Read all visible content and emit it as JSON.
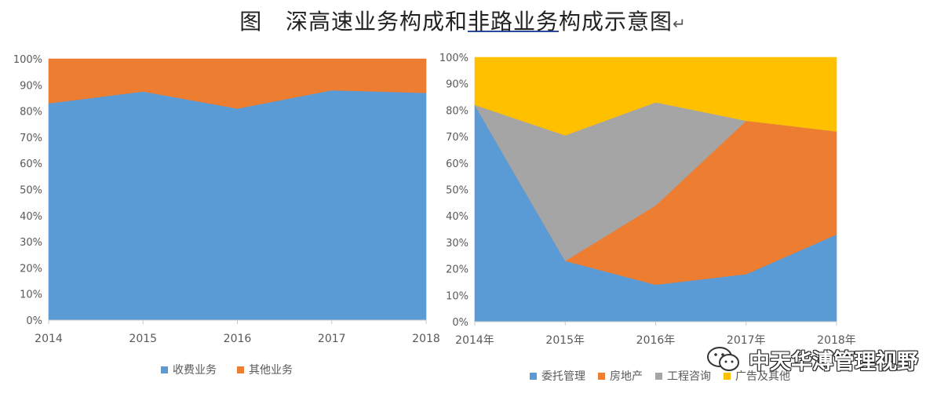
{
  "title": {
    "prefix": "图",
    "part1": "深高速业务构成和",
    "part2": "非路业务",
    "part3": "构成示意图",
    "mark": "↵"
  },
  "watermark": {
    "text": "中天华溥管理视野",
    "icon": "wechat-logo-icon"
  },
  "chart_data": [
    {
      "type": "area",
      "stacked": true,
      "categories": [
        "2014",
        "2015",
        "2016",
        "2017",
        "2018"
      ],
      "yticks": [
        "0%",
        "10%",
        "20%",
        "30%",
        "40%",
        "50%",
        "60%",
        "70%",
        "80%",
        "90%",
        "100%"
      ],
      "ylim": [
        0,
        100
      ],
      "series": [
        {
          "name": "收费业务",
          "values": [
            83,
            87.5,
            81,
            88,
            87
          ],
          "color": "#5b9bd5"
        },
        {
          "name": "其他业务",
          "values": [
            17,
            12.5,
            19,
            12,
            13
          ],
          "color": "#ed7d31"
        }
      ],
      "legend": "bottom",
      "grid": false
    },
    {
      "type": "area",
      "stacked": true,
      "categories": [
        "2014年",
        "2015年",
        "2016年",
        "2017年",
        "2018年"
      ],
      "yticks": [
        "0%",
        "10%",
        "20%",
        "30%",
        "40%",
        "50%",
        "60%",
        "70%",
        "80%",
        "90%",
        "100%"
      ],
      "ylim": [
        0,
        100
      ],
      "series": [
        {
          "name": "委托管理",
          "values": [
            82,
            23,
            14,
            18,
            33
          ],
          "color": "#5b9bd5"
        },
        {
          "name": "房地产",
          "values": [
            0,
            0,
            30,
            58,
            39
          ],
          "color": "#ed7d31"
        },
        {
          "name": "工程咨询",
          "values": [
            0,
            47.5,
            39,
            0,
            0
          ],
          "color": "#a5a5a5"
        },
        {
          "name": "广告及其他",
          "values": [
            18,
            29.5,
            17,
            24,
            28
          ],
          "color": "#ffc000"
        }
      ],
      "legend": "bottom",
      "grid": false
    }
  ]
}
